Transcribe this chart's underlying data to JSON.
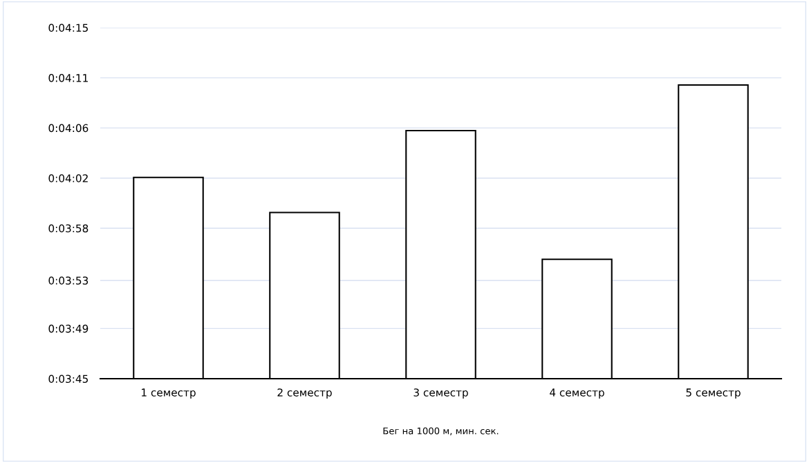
{
  "chart_data": {
    "type": "bar",
    "xlabel": "Бег на 1000 м, мин. сек.",
    "categories": [
      "1 семестр",
      "2 семестр",
      "3 семестр",
      "4 семестр",
      "5 семестр"
    ],
    "values": [
      242.2,
      239.2,
      246.2,
      235.2,
      250.1
    ],
    "color": "#ffffff",
    "ylim": [
      225,
      255
    ],
    "yticks": [
      {
        "value": 225,
        "label": "0:03:45"
      },
      {
        "value": 229.29,
        "label": "0:03:49"
      },
      {
        "value": 233.4,
        "label": "0:03:53"
      },
      {
        "value": 237.86,
        "label": "0:03:58"
      },
      {
        "value": 242.14,
        "label": "0:04:02"
      },
      {
        "value": 246.43,
        "label": "0:04:06"
      },
      {
        "value": 250.71,
        "label": "0:04:11"
      },
      {
        "value": 255,
        "label": "0:04:15"
      }
    ],
    "grid": "y",
    "legend": false
  }
}
